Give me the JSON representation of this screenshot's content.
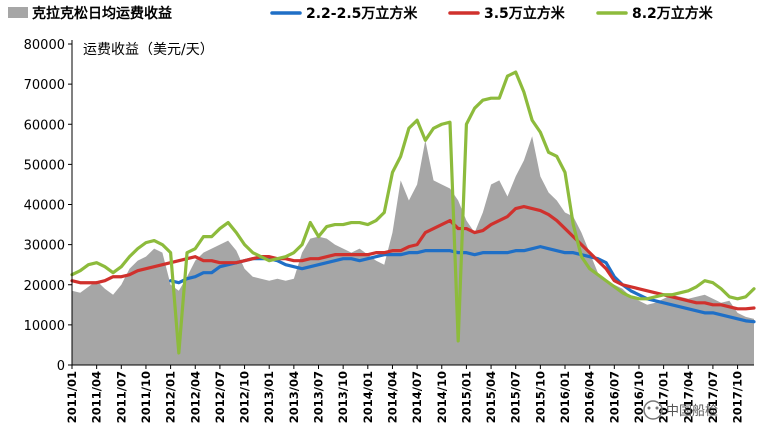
{
  "chart_data": {
    "type": "area+line",
    "title": "",
    "ylabel": "运费收益（美元/天）",
    "xlabel": "",
    "ylim": [
      0,
      80000
    ],
    "yticks": [
      0,
      10000,
      20000,
      30000,
      40000,
      50000,
      60000,
      70000,
      80000
    ],
    "ytick_labels": [
      "0",
      "10000",
      "20000",
      "30000",
      "40000",
      "50000",
      "60000",
      "70000",
      "80000"
    ],
    "x_tick_labels": [
      "2011/01",
      "2011/04",
      "2011/07",
      "2011/10",
      "2012/01",
      "2012/04",
      "2012/07",
      "2012/10",
      "2013/01",
      "2013/04",
      "2013/07",
      "2013/10",
      "2014/01",
      "2014/04",
      "2014/07",
      "2014/10",
      "2015/01",
      "2015/04",
      "2015/07",
      "2015/10",
      "2016/01",
      "2016/04",
      "2016/07",
      "2016/10",
      "2017/01",
      "2017/04",
      "2017/07",
      "2017/10"
    ],
    "legend_position": "top",
    "grid": false,
    "series": [
      {
        "name": "克拉克松日均运费收益",
        "kind": "area",
        "color": "#a6a6a6",
        "values": [
          18500,
          18000,
          19500,
          21000,
          19000,
          17500,
          20000,
          24000,
          26000,
          27000,
          29000,
          28000,
          20000,
          18500,
          22000,
          26000,
          28000,
          29000,
          30000,
          31000,
          28500,
          24000,
          22000,
          21500,
          21000,
          21500,
          21000,
          21500,
          28000,
          31500,
          32000,
          31500,
          30000,
          29000,
          28000,
          29000,
          27500,
          26000,
          25000,
          33000,
          46000,
          41000,
          45000,
          56000,
          46000,
          45000,
          44000,
          41000,
          36000,
          33000,
          38000,
          45000,
          46000,
          42000,
          47000,
          51000,
          57000,
          47000,
          43000,
          41000,
          38000,
          37000,
          33000,
          28000,
          23000,
          21000,
          20000,
          19000,
          17000,
          16000,
          15000,
          15500,
          16500,
          17500,
          17000,
          16500,
          17000,
          17500,
          16500,
          15500,
          16000,
          13000,
          12000,
          11500
        ]
      },
      {
        "name": "2.2-2.5万立方米",
        "kind": "line",
        "color": "#1f6fc6",
        "values": [
          null,
          null,
          null,
          null,
          null,
          null,
          null,
          null,
          null,
          null,
          null,
          null,
          21000,
          20500,
          21500,
          22000,
          23000,
          23000,
          24500,
          25000,
          25500,
          26000,
          26500,
          26500,
          26500,
          26000,
          25000,
          24500,
          24000,
          24500,
          25000,
          25500,
          26000,
          26500,
          26500,
          26000,
          26500,
          27000,
          27500,
          27500,
          27500,
          28000,
          28000,
          28500,
          28500,
          28500,
          28500,
          28000,
          28000,
          27500,
          28000,
          28000,
          28000,
          28000,
          28500,
          28500,
          29000,
          29500,
          29000,
          28500,
          28000,
          28000,
          27500,
          27000,
          26500,
          25500,
          22000,
          20000,
          18500,
          17500,
          16500,
          16000,
          15500,
          15000,
          14500,
          14000,
          13500,
          13000,
          13000,
          12500,
          12000,
          11500,
          11000,
          10800
        ]
      },
      {
        "name": "3.5万立方米",
        "kind": "line",
        "color": "#d0312d",
        "values": [
          21000,
          20500,
          20500,
          20500,
          21000,
          22000,
          22000,
          22500,
          23500,
          24000,
          24500,
          25000,
          25500,
          26000,
          26500,
          27000,
          26000,
          26000,
          25500,
          25500,
          25500,
          26000,
          26500,
          27000,
          27000,
          26500,
          26500,
          26000,
          26000,
          26500,
          26500,
          27000,
          27500,
          27500,
          27500,
          27500,
          27500,
          28000,
          28000,
          28500,
          28500,
          29500,
          30000,
          33000,
          34000,
          35000,
          36000,
          34000,
          34000,
          33000,
          33500,
          35000,
          36000,
          37000,
          39000,
          39500,
          39000,
          38500,
          37500,
          36000,
          34000,
          32000,
          30000,
          28000,
          26000,
          24000,
          21000,
          20000,
          19500,
          19000,
          18500,
          18000,
          17500,
          17000,
          16500,
          16000,
          15500,
          15500,
          15000,
          15000,
          14500,
          14000,
          14000,
          14200
        ]
      },
      {
        "name": "8.2万立方米",
        "kind": "line",
        "color": "#8dbb3c",
        "values": [
          22500,
          23500,
          25000,
          25500,
          24500,
          23000,
          24500,
          27000,
          29000,
          30500,
          31000,
          30000,
          28000,
          3000,
          28000,
          29000,
          32000,
          32000,
          34000,
          35500,
          33000,
          30000,
          28000,
          27000,
          26000,
          26500,
          27000,
          28000,
          30000,
          35500,
          32000,
          34500,
          35000,
          35000,
          35500,
          35500,
          35000,
          36000,
          38000,
          48000,
          52000,
          59000,
          61000,
          56000,
          59000,
          60000,
          60500,
          6000,
          60000,
          64000,
          66000,
          66500,
          66500,
          72000,
          73000,
          68000,
          61000,
          58000,
          53000,
          52000,
          48000,
          35000,
          27000,
          24000,
          22500,
          21000,
          19500,
          18000,
          17000,
          16500,
          16500,
          17000,
          17500,
          17500,
          18000,
          18500,
          19500,
          21000,
          20500,
          19000,
          17000,
          16500,
          17000,
          19000
        ]
      }
    ]
  },
  "watermark": "中国船检"
}
